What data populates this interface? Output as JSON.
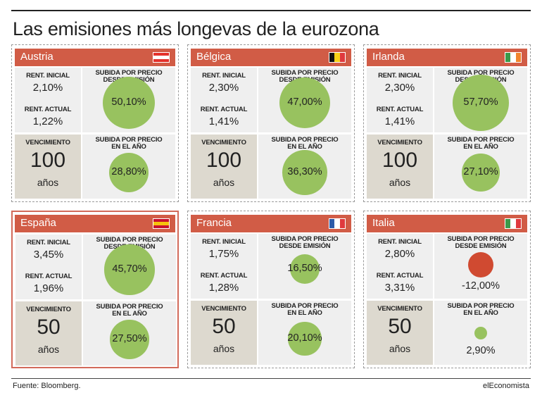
{
  "title": "Las emisiones más longevas de la eurozona",
  "labels": {
    "rent_inicial": "RENT. INICIAL",
    "rent_actual": "RENT. ACTUAL",
    "vencimiento": "VENCIMIENTO",
    "subida_emision_1": "SUBIDA POR PRECIO",
    "subida_emision_2": "DESDE EMISIÓN",
    "subida_anio_1": "SUBIDA POR PRECIO",
    "subida_anio_2": "EN EL AÑO",
    "years_unit": "años"
  },
  "footer": {
    "source": "Fuente: Bloomberg.",
    "brand": "elEconomista"
  },
  "chart_data": {
    "type": "table",
    "title": "Las emisiones más longevas de la eurozona",
    "countries": [
      {
        "name": "Austria",
        "rent_inicial": "2,10%",
        "rent_actual": "1,22%",
        "vencimiento": "100",
        "subida_emision": "50,10%",
        "subida_emision_value": 50.1,
        "subida_anio": "28,80%",
        "subida_anio_value": 28.8,
        "flag": [
          "#e4312b",
          "#ffffff",
          "#e4312b"
        ],
        "flag_dir": "h",
        "highlight": false
      },
      {
        "name": "Bélgica",
        "rent_inicial": "2,30%",
        "rent_actual": "1,41%",
        "vencimiento": "100",
        "subida_emision": "47,00%",
        "subida_emision_value": 47.0,
        "subida_anio": "36,30%",
        "subida_anio_value": 36.3,
        "flag": [
          "#111111",
          "#f7d117",
          "#e03a3e"
        ],
        "flag_dir": "v",
        "highlight": false
      },
      {
        "name": "Irlanda",
        "rent_inicial": "2,30%",
        "rent_actual": "1,41%",
        "vencimiento": "100",
        "subida_emision": "57,70%",
        "subida_emision_value": 57.7,
        "subida_anio": "27,10%",
        "subida_anio_value": 27.1,
        "flag": [
          "#3a9a4a",
          "#ffffff",
          "#f1852d"
        ],
        "flag_dir": "v",
        "highlight": false
      },
      {
        "name": "España",
        "rent_inicial": "3,45%",
        "rent_actual": "1,96%",
        "vencimiento": "50",
        "subida_emision": "45,70%",
        "subida_emision_value": 45.7,
        "subida_anio": "27,50%",
        "subida_anio_value": 27.5,
        "flag": [
          "#c8102e",
          "#f6c10e",
          "#c8102e"
        ],
        "flag_dir": "h",
        "highlight": true
      },
      {
        "name": "Francia",
        "rent_inicial": "1,75%",
        "rent_actual": "1,28%",
        "vencimiento": "50",
        "subida_emision": "16,50%",
        "subida_emision_value": 16.5,
        "subida_anio": "20,10%",
        "subida_anio_value": 20.1,
        "flag": [
          "#2c5aa8",
          "#ffffff",
          "#e03a3e"
        ],
        "flag_dir": "v",
        "highlight": false
      },
      {
        "name": "Italia",
        "rent_inicial": "2,80%",
        "rent_actual": "3,31%",
        "vencimiento": "50",
        "subida_emision": "-12,00%",
        "subida_emision_value": -12.0,
        "subida_anio": "2,90%",
        "subida_anio_value": 2.9,
        "flag": [
          "#3a9a4a",
          "#ffffff",
          "#e03a3e"
        ],
        "flag_dir": "v",
        "highlight": false
      }
    ],
    "colors": {
      "positive": "#98c25f",
      "negative": "#d04a31",
      "header": "#d15c46"
    }
  }
}
